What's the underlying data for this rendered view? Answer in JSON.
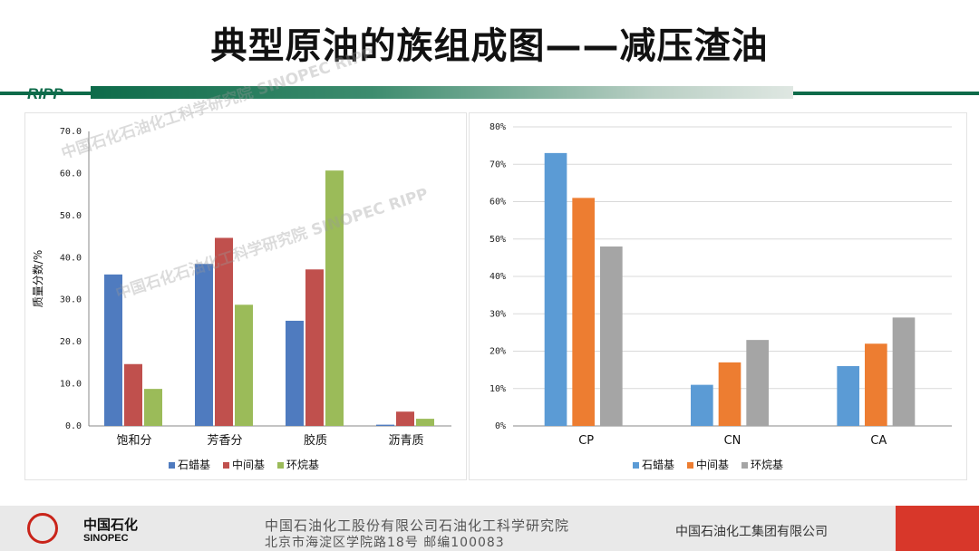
{
  "title": "典型原油的族组成图——减压渣油",
  "header": {
    "logo_text": "RIPP"
  },
  "watermark": {
    "line1": "中国石化石油化工科学研究院  SINOPEC  RIPP",
    "line2": "中国石化石油化工科学研究院  SINOPEC  RIPP"
  },
  "footer": {
    "logo_cn": "中国石化",
    "logo_en": "SINOPEC",
    "address_line1": "中国石油化工股份有限公司石油化工科学研究院",
    "address_line2": "北京市海淀区学院路18号  邮编100083",
    "company": "中国石油化工集团有限公司"
  },
  "colors": {
    "series_left": [
      "#4f7bbf",
      "#c0504d",
      "#9bbb59"
    ],
    "series_right": [
      "#5b9bd5",
      "#ed7d31",
      "#a5a5a5"
    ],
    "brand_green": "#0e6b4a",
    "brand_red": "#d8372a"
  },
  "chart_data": [
    {
      "type": "bar",
      "categories": [
        "饱和分",
        "芳香分",
        "胶质",
        "沥青质"
      ],
      "series": [
        {
          "name": "石蜡基",
          "values": [
            36.0,
            38.5,
            25.0,
            0.3
          ]
        },
        {
          "name": "中间基",
          "values": [
            14.7,
            44.7,
            37.2,
            3.4
          ]
        },
        {
          "name": "环烷基",
          "values": [
            8.8,
            28.8,
            60.7,
            1.7
          ]
        }
      ],
      "ylabel": "质量分数/%",
      "ylim": [
        0,
        70
      ],
      "yticks": [
        "0.0",
        "10.0",
        "20.0",
        "30.0",
        "40.0",
        "50.0",
        "60.0",
        "70.0"
      ],
      "grid": false,
      "legend": "bottom"
    },
    {
      "type": "bar",
      "categories": [
        "CP",
        "CN",
        "CA"
      ],
      "series": [
        {
          "name": "石蜡基",
          "values": [
            73,
            11,
            16
          ]
        },
        {
          "name": "中间基",
          "values": [
            61,
            17,
            22
          ]
        },
        {
          "name": "环烷基",
          "values": [
            48,
            23,
            29
          ]
        }
      ],
      "ylim": [
        0,
        80
      ],
      "yticks": [
        "0%",
        "10%",
        "20%",
        "30%",
        "40%",
        "50%",
        "60%",
        "70%",
        "80%"
      ],
      "grid": true,
      "legend": "bottom"
    }
  ]
}
